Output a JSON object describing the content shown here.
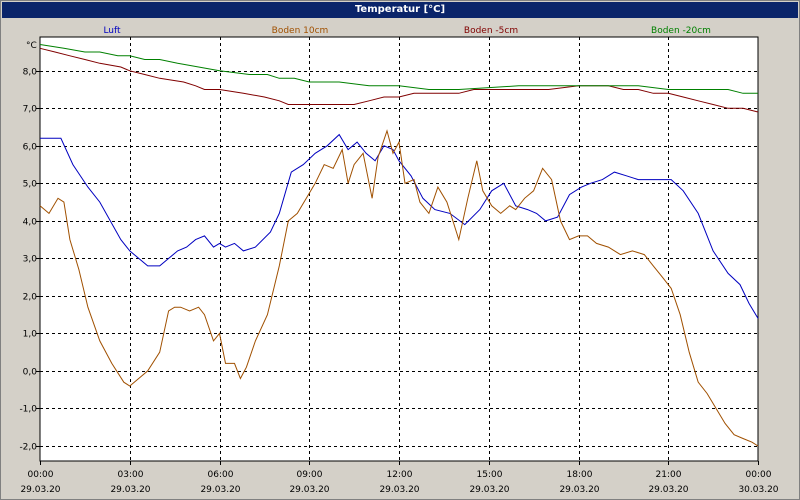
{
  "window": {
    "title": "Temperatur [°C]"
  },
  "chart_data": {
    "type": "line",
    "title": "Temperatur [°C]",
    "yunit": "°C",
    "ylim": [
      -2.4,
      8.9
    ],
    "yticks": [
      8.0,
      7.0,
      6.0,
      5.0,
      4.0,
      3.0,
      2.0,
      1.0,
      0.0,
      -1.0,
      -2.0
    ],
    "ytick_labels": [
      "8,0",
      "7,0",
      "6,0",
      "5,0",
      "4,0",
      "3,0",
      "2,0",
      "1,0",
      "0,0",
      "-1,0",
      "-2,0"
    ],
    "xlim": [
      0,
      24
    ],
    "xticks": [
      0,
      3,
      6,
      9,
      12,
      15,
      18,
      21,
      24
    ],
    "xtick_times": [
      "00:00",
      "03:00",
      "06:00",
      "09:00",
      "12:00",
      "15:00",
      "18:00",
      "21:00",
      "00:00"
    ],
    "xtick_dates": [
      "29.03.20",
      "29.03.20",
      "29.03.20",
      "29.03.20",
      "29.03.20",
      "29.03.20",
      "29.03.20",
      "29.03.20",
      "30.03.20"
    ],
    "grid": true,
    "legend_position": "top",
    "series": [
      {
        "name": "Luft",
        "color": "#0000c0",
        "x": [
          0,
          0.7,
          1.1,
          1.6,
          2.0,
          2.7,
          3.0,
          3.6,
          4.0,
          4.6,
          4.9,
          5.2,
          5.5,
          5.8,
          6.0,
          6.2,
          6.5,
          6.8,
          7.2,
          7.7,
          8.0,
          8.4,
          8.8,
          9.2,
          9.6,
          10.0,
          10.3,
          10.6,
          10.9,
          11.2,
          11.5,
          11.8,
          12.0,
          12.4,
          12.8,
          13.2,
          13.7,
          14.2,
          14.7,
          15.1,
          15.5,
          15.9,
          16.3,
          16.6,
          16.9,
          17.3,
          17.7,
          18.1,
          18.4,
          18.8,
          19.2,
          19.6,
          20.0,
          20.4,
          20.9,
          21.1,
          21.5,
          22.0,
          22.5,
          23.0,
          23.4,
          23.7,
          24.0
        ],
        "y": [
          6.2,
          6.2,
          5.5,
          4.9,
          4.5,
          3.5,
          3.2,
          2.8,
          2.8,
          3.2,
          3.3,
          3.5,
          3.6,
          3.3,
          3.4,
          3.3,
          3.4,
          3.2,
          3.3,
          3.7,
          4.2,
          5.3,
          5.5,
          5.8,
          6.0,
          6.3,
          5.9,
          6.1,
          5.8,
          5.6,
          6.0,
          5.9,
          5.6,
          5.2,
          4.6,
          4.3,
          4.2,
          3.9,
          4.3,
          4.8,
          5.0,
          4.4,
          4.3,
          4.2,
          4.0,
          4.1,
          4.7,
          4.9,
          5.0,
          5.1,
          5.3,
          5.2,
          5.1,
          5.1,
          5.1,
          5.1,
          4.8,
          4.2,
          3.2,
          2.6,
          2.3,
          1.8,
          1.4
        ]
      },
      {
        "name": "Boden 10cm",
        "color": "#a05000",
        "x": [
          0,
          0.3,
          0.6,
          0.8,
          1.0,
          1.3,
          1.6,
          2.0,
          2.4,
          2.8,
          3.0,
          3.3,
          3.6,
          4.0,
          4.3,
          4.5,
          4.7,
          5.0,
          5.3,
          5.5,
          5.8,
          6.0,
          6.2,
          6.5,
          6.7,
          6.9,
          7.2,
          7.6,
          8.0,
          8.3,
          8.6,
          8.9,
          9.2,
          9.5,
          9.8,
          10.1,
          10.3,
          10.5,
          10.8,
          11.1,
          11.3,
          11.6,
          11.8,
          12.0,
          12.2,
          12.5,
          12.7,
          13.0,
          13.3,
          13.6,
          13.8,
          14.0,
          14.3,
          14.6,
          14.8,
          15.1,
          15.4,
          15.7,
          15.9,
          16.2,
          16.5,
          16.8,
          17.1,
          17.4,
          17.7,
          18.0,
          18.3,
          18.6,
          19.0,
          19.4,
          19.8,
          20.2,
          20.5,
          20.8,
          21.1,
          21.4,
          21.7,
          22.0,
          22.3,
          22.6,
          22.9,
          23.2,
          23.5,
          23.8,
          24.0
        ],
        "y": [
          4.4,
          4.2,
          4.6,
          4.5,
          3.5,
          2.7,
          1.7,
          0.8,
          0.2,
          -0.3,
          -0.4,
          -0.2,
          0.0,
          0.5,
          1.6,
          1.7,
          1.7,
          1.6,
          1.7,
          1.5,
          0.8,
          1.0,
          0.2,
          0.2,
          -0.2,
          0.1,
          0.8,
          1.5,
          2.8,
          4.0,
          4.2,
          4.6,
          5.0,
          5.5,
          5.4,
          5.9,
          5.0,
          5.5,
          5.8,
          4.6,
          5.7,
          6.4,
          5.8,
          6.1,
          5.0,
          5.1,
          4.5,
          4.2,
          4.9,
          4.5,
          4.0,
          3.5,
          4.6,
          5.6,
          4.8,
          4.4,
          4.2,
          4.4,
          4.3,
          4.6,
          4.8,
          5.4,
          5.1,
          4.0,
          3.5,
          3.6,
          3.6,
          3.4,
          3.3,
          3.1,
          3.2,
          3.1,
          2.8,
          2.5,
          2.2,
          1.5,
          0.5,
          -0.3,
          -0.6,
          -1.0,
          -1.4,
          -1.7,
          -1.8,
          -1.9,
          -2.0
        ]
      },
      {
        "name": "Boden -5cm",
        "color": "#800000",
        "x": [
          0,
          0.5,
          1.0,
          1.5,
          2.0,
          2.7,
          3.0,
          3.5,
          4.0,
          4.8,
          5.2,
          5.5,
          6.0,
          6.8,
          7.5,
          8.0,
          8.3,
          8.6,
          9.0,
          10.5,
          11.0,
          11.5,
          12.0,
          12.5,
          13.0,
          14.0,
          14.5,
          15.0,
          16.0,
          17.0,
          18.0,
          19.0,
          19.5,
          20.0,
          20.5,
          21.0,
          21.5,
          22.0,
          22.5,
          23.0,
          23.5,
          24.0
        ],
        "y": [
          8.6,
          8.5,
          8.4,
          8.3,
          8.2,
          8.1,
          8.0,
          7.9,
          7.8,
          7.7,
          7.6,
          7.5,
          7.5,
          7.4,
          7.3,
          7.2,
          7.1,
          7.1,
          7.1,
          7.1,
          7.2,
          7.3,
          7.3,
          7.4,
          7.4,
          7.4,
          7.5,
          7.5,
          7.5,
          7.5,
          7.6,
          7.6,
          7.5,
          7.5,
          7.4,
          7.4,
          7.3,
          7.2,
          7.1,
          7.0,
          7.0,
          6.9
        ]
      },
      {
        "name": "Boden -20cm",
        "color": "#008000",
        "x": [
          0,
          0.8,
          1.5,
          2.0,
          2.6,
          3.0,
          3.5,
          4.0,
          4.6,
          5.3,
          6.0,
          7.0,
          7.6,
          8.0,
          8.5,
          9.0,
          9.5,
          10.0,
          11.0,
          12.0,
          13.0,
          13.5,
          14.0,
          16.0,
          18.0,
          20.0,
          21.0,
          22.0,
          23.0,
          23.5,
          24.0
        ],
        "y": [
          8.7,
          8.6,
          8.5,
          8.5,
          8.4,
          8.4,
          8.3,
          8.3,
          8.2,
          8.1,
          8.0,
          7.9,
          7.9,
          7.8,
          7.8,
          7.7,
          7.7,
          7.7,
          7.6,
          7.6,
          7.5,
          7.5,
          7.5,
          7.6,
          7.6,
          7.6,
          7.5,
          7.5,
          7.5,
          7.4,
          7.4
        ]
      }
    ]
  }
}
